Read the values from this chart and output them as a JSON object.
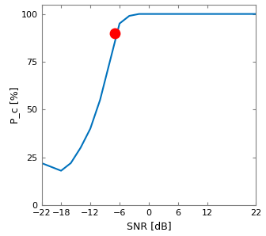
{
  "x": [
    -22,
    -18,
    -16,
    -14,
    -12,
    -10,
    -8,
    -6,
    -4,
    -2,
    0,
    2,
    4,
    6,
    8,
    10,
    12,
    14,
    16,
    18,
    20,
    22
  ],
  "y": [
    22,
    18,
    22,
    30,
    40,
    55,
    75,
    95,
    99,
    100,
    100,
    100,
    100,
    100,
    100,
    100,
    100,
    100,
    100,
    100,
    100,
    100
  ],
  "red_dot_x": -7,
  "red_dot_y": 90,
  "line_color": "#0072BD",
  "dot_color": "#FF0000",
  "xlabel": "SNR [dB]",
  "ylabel": "P_c [%]",
  "xlim": [
    -22,
    22
  ],
  "ylim": [
    0,
    105
  ],
  "xticks": [
    -22,
    -18,
    -12,
    -6,
    0,
    6,
    12,
    22
  ],
  "yticks": [
    0,
    25,
    50,
    75,
    100
  ],
  "line_width": 1.5,
  "dot_size": 80,
  "background_color": "#ffffff",
  "axes_edge_color": "#808080",
  "tick_label_fontsize": 8,
  "label_fontsize": 9
}
